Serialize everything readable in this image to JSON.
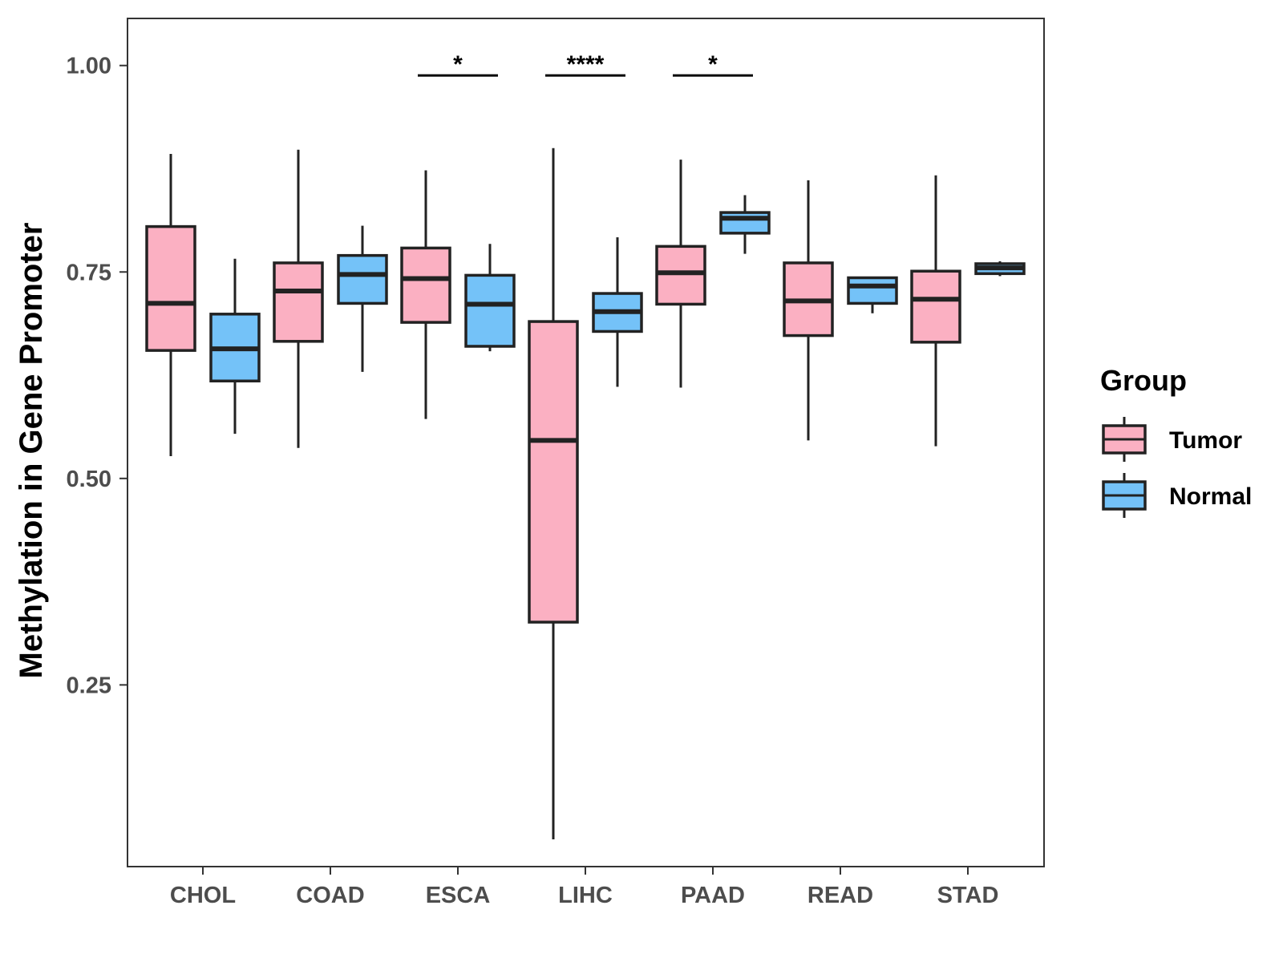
{
  "chart_data": {
    "type": "boxplot",
    "title": "",
    "xlabel": "",
    "ylabel": "Methylation in Gene Promoter",
    "ylim": [
      0.03,
      1.057
    ],
    "y_ticks": [
      0.25,
      0.5,
      0.75,
      1.0
    ],
    "y_tick_labels": [
      "0.25",
      "0.50",
      "0.75",
      "1.00"
    ],
    "categories": [
      "CHOL",
      "COAD",
      "ESCA",
      "LIHC",
      "PAAD",
      "READ",
      "STAD"
    ],
    "grid": false,
    "legend": {
      "title": "Group",
      "position": "right",
      "entries": [
        {
          "label": "Tumor",
          "color": "#FBB0C2"
        },
        {
          "label": "Normal",
          "color": "#74C2F8"
        }
      ]
    },
    "series": [
      {
        "name": "Tumor",
        "color": "#FBB0C2",
        "boxes": [
          {
            "category": "CHOL",
            "min": 0.527,
            "q1": 0.655,
            "median": 0.712,
            "q3": 0.805,
            "max": 0.893
          },
          {
            "category": "COAD",
            "min": 0.537,
            "q1": 0.666,
            "median": 0.727,
            "q3": 0.761,
            "max": 0.898
          },
          {
            "category": "ESCA",
            "min": 0.572,
            "q1": 0.689,
            "median": 0.742,
            "q3": 0.779,
            "max": 0.873
          },
          {
            "category": "LIHC",
            "min": 0.063,
            "q1": 0.326,
            "median": 0.546,
            "q3": 0.69,
            "max": 0.9
          },
          {
            "category": "PAAD",
            "min": 0.61,
            "q1": 0.711,
            "median": 0.749,
            "q3": 0.781,
            "max": 0.886
          },
          {
            "category": "READ",
            "min": 0.546,
            "q1": 0.673,
            "median": 0.715,
            "q3": 0.761,
            "max": 0.861
          },
          {
            "category": "STAD",
            "min": 0.539,
            "q1": 0.665,
            "median": 0.717,
            "q3": 0.751,
            "max": 0.867
          }
        ]
      },
      {
        "name": "Normal",
        "color": "#74C2F8",
        "boxes": [
          {
            "category": "CHOL",
            "min": 0.554,
            "q1": 0.618,
            "median": 0.657,
            "q3": 0.699,
            "max": 0.766
          },
          {
            "category": "COAD",
            "min": 0.629,
            "q1": 0.712,
            "median": 0.747,
            "q3": 0.77,
            "max": 0.806
          },
          {
            "category": "ESCA",
            "min": 0.654,
            "q1": 0.66,
            "median": 0.711,
            "q3": 0.746,
            "max": 0.784
          },
          {
            "category": "LIHC",
            "min": 0.611,
            "q1": 0.678,
            "median": 0.702,
            "q3": 0.724,
            "max": 0.792
          },
          {
            "category": "PAAD",
            "min": 0.772,
            "q1": 0.797,
            "median": 0.815,
            "q3": 0.822,
            "max": 0.843
          },
          {
            "category": "READ",
            "min": 0.7,
            "q1": 0.712,
            "median": 0.733,
            "q3": 0.743,
            "max": 0.743
          },
          {
            "category": "STAD",
            "min": 0.745,
            "q1": 0.748,
            "median": 0.755,
            "q3": 0.76,
            "max": 0.763
          }
        ]
      }
    ],
    "significance": [
      {
        "category": "ESCA",
        "label": "*",
        "y": 0.988
      },
      {
        "category": "LIHC",
        "label": "****",
        "y": 0.988
      },
      {
        "category": "PAAD",
        "label": "*",
        "y": 0.988
      }
    ]
  }
}
